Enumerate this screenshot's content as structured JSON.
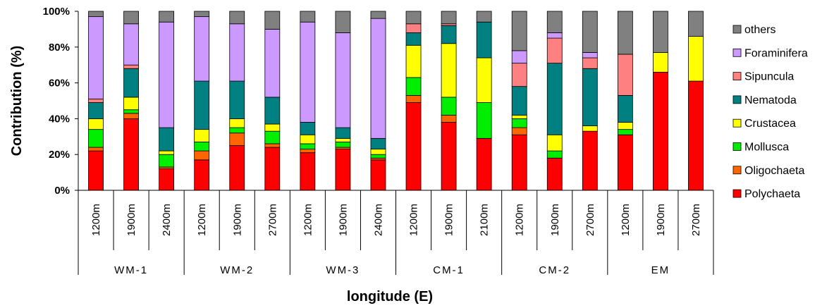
{
  "chart_data": {
    "type": "bar",
    "stacked": true,
    "xlabel": "longitude (E)",
    "ylabel": "Contribution (%)",
    "ylim": [
      0,
      100
    ],
    "yticks": [
      "0%",
      "20%",
      "40%",
      "60%",
      "80%",
      "100%"
    ],
    "legend_position": "right",
    "categories": [
      "1200m",
      "1900m",
      "2400m",
      "1200m",
      "1900m",
      "2700m",
      "1200m",
      "1900m",
      "2400m",
      "1200m",
      "1900m",
      "2100m",
      "1200m",
      "1900m",
      "2700m",
      "1200m",
      "1900m",
      "2700m"
    ],
    "groups": [
      {
        "label": "WM-1",
        "count": 3
      },
      {
        "label": "WM-2",
        "count": 3
      },
      {
        "label": "WM-3",
        "count": 3
      },
      {
        "label": "CM-1",
        "count": 3
      },
      {
        "label": "CM-2",
        "count": 3
      },
      {
        "label": "EM",
        "count": 3
      }
    ],
    "series": [
      {
        "name": "Polychaeta",
        "color": "#ff0000",
        "values": [
          22,
          40,
          12,
          17,
          25,
          24,
          21,
          23,
          17,
          49,
          38,
          29,
          31,
          18,
          33,
          31,
          66,
          61
        ]
      },
      {
        "name": "Oligochaeta",
        "color": "#ff6600",
        "values": [
          2,
          3,
          1,
          5,
          7,
          2,
          2,
          1,
          1,
          4,
          4,
          0,
          4,
          0,
          0,
          0,
          0,
          0
        ]
      },
      {
        "name": "Mollusca",
        "color": "#00ee00",
        "values": [
          10,
          2,
          7,
          5,
          3,
          7,
          3,
          3,
          2,
          10,
          10,
          20,
          5,
          4,
          0,
          3,
          0,
          0
        ]
      },
      {
        "name": "Crustacea",
        "color": "#ffff00",
        "values": [
          6,
          7,
          2,
          7,
          5,
          4,
          5,
          2,
          3,
          18,
          30,
          25,
          2,
          9,
          3,
          4,
          11,
          25
        ]
      },
      {
        "name": "Nematoda",
        "color": "#008080",
        "values": [
          9,
          16,
          13,
          27,
          21,
          15,
          7,
          6,
          6,
          7,
          10,
          20,
          16,
          40,
          32,
          15,
          0,
          0
        ]
      },
      {
        "name": "Sipuncula",
        "color": "#ff8080",
        "values": [
          2,
          2,
          0,
          0,
          0,
          0,
          0,
          0,
          0,
          5,
          1,
          0,
          13,
          14,
          6,
          23,
          0,
          0
        ]
      },
      {
        "name": "Foraminifera",
        "color": "#cc99ff",
        "values": [
          46,
          23,
          59,
          36,
          32,
          38,
          56,
          53,
          67,
          0,
          0,
          0,
          7,
          3,
          3,
          0,
          0,
          0
        ]
      },
      {
        "name": "others",
        "color": "#808080",
        "values": [
          3,
          7,
          6,
          3,
          7,
          10,
          6,
          12,
          4,
          7,
          7,
          6,
          22,
          12,
          23,
          24,
          23,
          14
        ]
      }
    ]
  }
}
